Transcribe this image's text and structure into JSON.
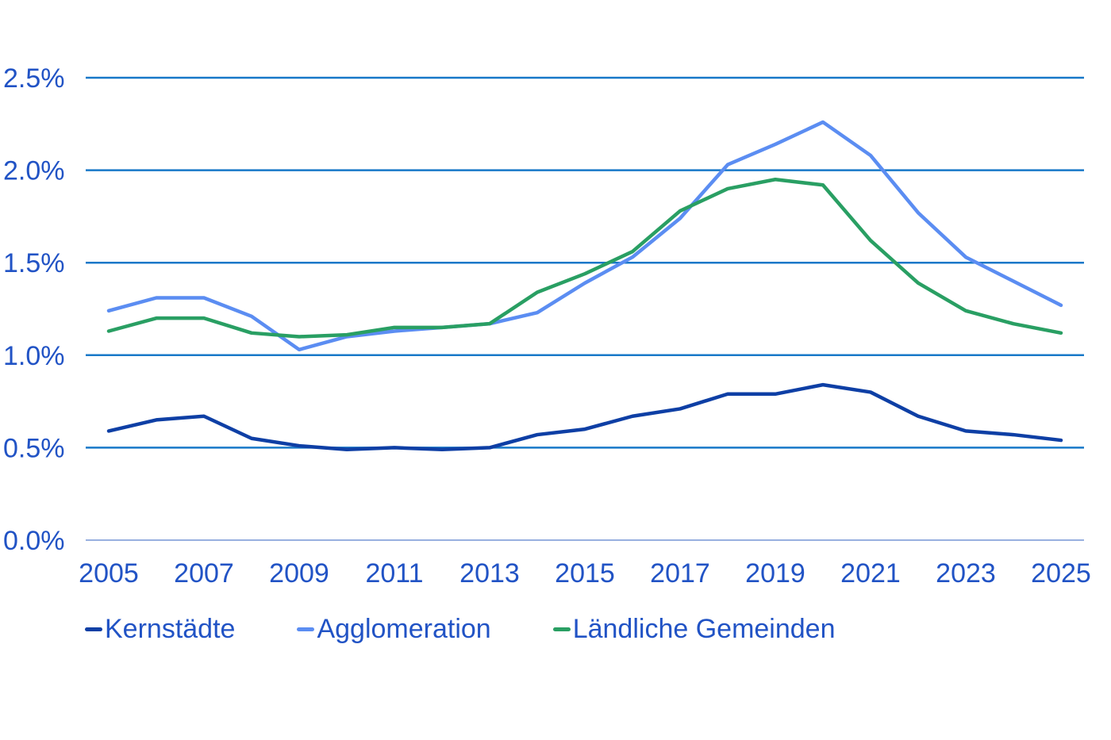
{
  "chart_data": {
    "type": "line",
    "title": "",
    "xlabel": "",
    "ylabel": "",
    "x": [
      2005,
      2006,
      2007,
      2008,
      2009,
      2010,
      2011,
      2012,
      2013,
      2014,
      2015,
      2016,
      2017,
      2018,
      2019,
      2020,
      2021,
      2022,
      2023,
      2024,
      2025
    ],
    "series": [
      {
        "name": "Kernstädte",
        "color": "#0e3fa5",
        "values": [
          0.59,
          0.65,
          0.67,
          0.55,
          0.51,
          0.49,
          0.5,
          0.49,
          0.5,
          0.57,
          0.6,
          0.67,
          0.71,
          0.79,
          0.79,
          0.84,
          0.8,
          0.67,
          0.59,
          0.57,
          0.54
        ]
      },
      {
        "name": "Agglomeration",
        "color": "#5b8df2",
        "values": [
          1.24,
          1.31,
          1.31,
          1.21,
          1.03,
          1.1,
          1.13,
          1.15,
          1.17,
          1.23,
          1.39,
          1.53,
          1.74,
          2.03,
          2.14,
          2.26,
          2.08,
          1.77,
          1.53,
          1.4,
          1.27
        ]
      },
      {
        "name": "Ländliche Gemeinden",
        "color": "#299f63",
        "values": [
          1.13,
          1.2,
          1.2,
          1.12,
          1.1,
          1.11,
          1.15,
          1.15,
          1.17,
          1.34,
          1.44,
          1.56,
          1.78,
          1.9,
          1.95,
          1.92,
          1.62,
          1.39,
          1.24,
          1.17,
          1.12
        ]
      }
    ],
    "x_tick_labels": [
      "2005",
      "2007",
      "2009",
      "2011",
      "2013",
      "2015",
      "2017",
      "2019",
      "2021",
      "2023",
      "2025"
    ],
    "y_tick_labels": [
      "0.0%",
      "0.5%",
      "1.0%",
      "1.5%",
      "2.0%",
      "2.5%"
    ],
    "ylim": [
      0,
      2.5
    ],
    "y_tick_step": 0.5,
    "grid": "horizontal",
    "legend_position": "bottom"
  },
  "colors": {
    "axis_label": "#2153c5",
    "gridline": "#1878c8",
    "baseline": "#8aa4dc",
    "background": "#ffffff"
  }
}
